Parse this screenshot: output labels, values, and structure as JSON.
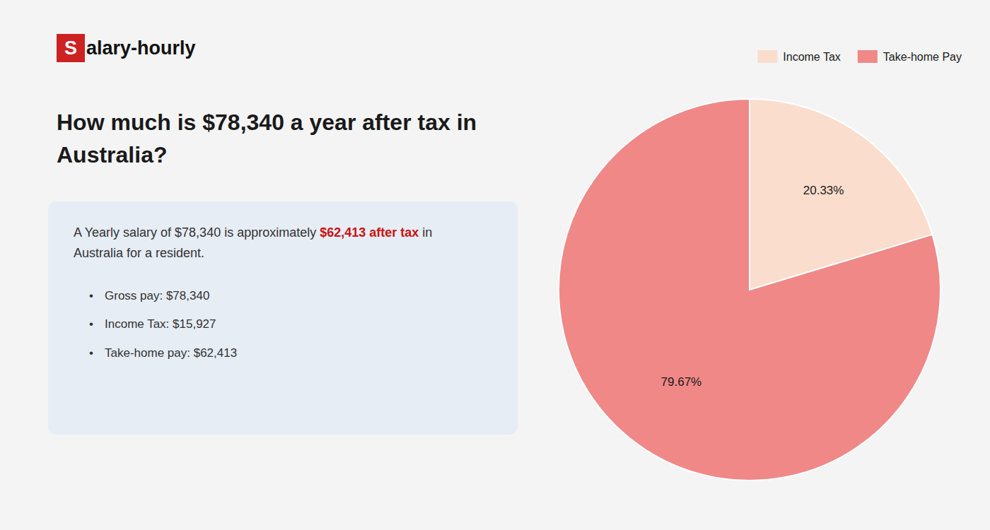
{
  "chart_data": {
    "type": "pie",
    "title": "How much is $78,340 a year after tax in\nAustralia?",
    "categories": [
      "Income Tax",
      "Take-home Pay"
    ],
    "values": [
      20.33,
      79.67
    ],
    "value_labels": [
      "20.33%",
      "79.67%"
    ],
    "colors": [
      "#faddcc",
      "#f08888"
    ],
    "data_labels": true,
    "legend": "top-right",
    "annotations": [
      {
        "text": "S",
        "color": "#cc2222"
      },
      {
        "text": "alary-hourly"
      },
      {
        "text": "A Yearly salary of $78,340 is approximately "
      },
      {
        "text": "$62,413 after tax",
        "color": "#cc1111"
      },
      {
        "text": " in"
      },
      {
        "text": "Australia for a resident."
      },
      {
        "text": "Gross pay: $78,340"
      },
      {
        "text": "Income Tax: $15,927"
      },
      {
        "text": "Take-home pay: $62,413"
      }
    ]
  }
}
